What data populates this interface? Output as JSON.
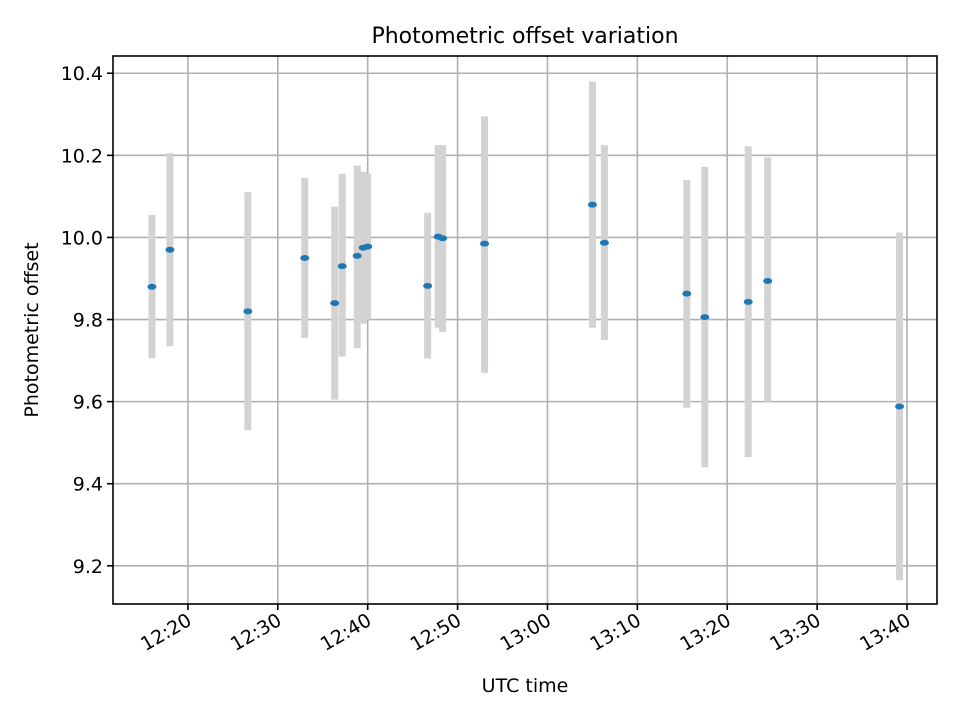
{
  "chart_data": {
    "type": "scatter",
    "title": "Photometric offset variation",
    "xlabel": "UTC time",
    "ylabel": "Photometric offset",
    "xlim": [
      "12:11:40",
      "13:43:20"
    ],
    "ylim": [
      9.107,
      10.442
    ],
    "x_ticks": [
      "12:20",
      "12:30",
      "12:40",
      "12:50",
      "13:00",
      "13:10",
      "13:20",
      "13:30",
      "13:40"
    ],
    "y_ticks": [
      "9.2",
      "9.4",
      "9.6",
      "9.8",
      "10.0",
      "10.2",
      "10.4"
    ],
    "grid": true,
    "colors": {
      "points": "#1f77b4",
      "errorbars": "#d3d3d3",
      "grid": "#b0b0b0"
    },
    "points": [
      {
        "x": "12:16:00",
        "y": 9.88,
        "ylow": 9.705,
        "yhigh": 10.055
      },
      {
        "x": "12:18:00",
        "y": 9.97,
        "ylow": 9.735,
        "yhigh": 10.205
      },
      {
        "x": "12:26:40",
        "y": 9.82,
        "ylow": 9.53,
        "yhigh": 10.11
      },
      {
        "x": "12:33:00",
        "y": 9.95,
        "ylow": 9.755,
        "yhigh": 10.145
      },
      {
        "x": "12:36:20",
        "y": 9.84,
        "ylow": 9.605,
        "yhigh": 10.075
      },
      {
        "x": "12:37:10",
        "y": 9.93,
        "ylow": 9.71,
        "yhigh": 10.155
      },
      {
        "x": "12:38:50",
        "y": 9.955,
        "ylow": 9.73,
        "yhigh": 10.175
      },
      {
        "x": "12:39:30",
        "y": 9.975,
        "ylow": 9.79,
        "yhigh": 10.16
      },
      {
        "x": "12:40:00",
        "y": 9.978,
        "ylow": 9.8,
        "yhigh": 10.155
      },
      {
        "x": "12:46:40",
        "y": 9.882,
        "ylow": 9.705,
        "yhigh": 10.06
      },
      {
        "x": "12:47:50",
        "y": 10.002,
        "ylow": 9.78,
        "yhigh": 10.225
      },
      {
        "x": "12:48:20",
        "y": 9.998,
        "ylow": 9.77,
        "yhigh": 10.225
      },
      {
        "x": "12:53:00",
        "y": 9.985,
        "ylow": 9.67,
        "yhigh": 10.295
      },
      {
        "x": "13:05:00",
        "y": 10.08,
        "ylow": 9.78,
        "yhigh": 10.38
      },
      {
        "x": "13:06:20",
        "y": 9.987,
        "ylow": 9.75,
        "yhigh": 10.225
      },
      {
        "x": "13:15:30",
        "y": 9.863,
        "ylow": 9.585,
        "yhigh": 10.14
      },
      {
        "x": "13:17:30",
        "y": 9.806,
        "ylow": 9.44,
        "yhigh": 10.172
      },
      {
        "x": "13:22:20",
        "y": 9.843,
        "ylow": 9.465,
        "yhigh": 10.222
      },
      {
        "x": "13:24:30",
        "y": 9.894,
        "ylow": 9.6,
        "yhigh": 10.195
      },
      {
        "x": "13:39:10",
        "y": 9.588,
        "ylow": 9.165,
        "yhigh": 10.012
      }
    ]
  }
}
